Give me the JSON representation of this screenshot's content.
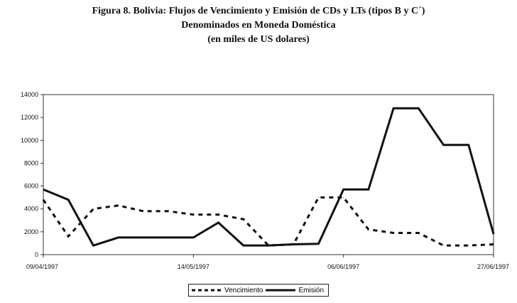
{
  "chart_data": {
    "type": "line",
    "title": "Figura 8. Bolivia: Flujos de Vencimiento y Emisión de CDs y LTs (tipos B y C´)",
    "subtitle": "Denominados en Moneda Doméstica",
    "subtitle2": "(en miles de US dolares)",
    "xlabel": "",
    "ylabel": "",
    "ylim": [
      0,
      14000
    ],
    "yticks": [
      "0",
      "2000",
      "4000",
      "6000",
      "8000",
      "10000",
      "12000",
      "14000"
    ],
    "xtick_labels": [
      {
        "index": 0,
        "label": "09/04/1997"
      },
      {
        "index": 6,
        "label": "14/05/1997"
      },
      {
        "index": 12,
        "label": "06/06/1997"
      },
      {
        "index": 18,
        "label": "27/06/1997"
      }
    ],
    "n_points": 19,
    "legend_position": "bottom",
    "series": [
      {
        "name": "Vencimiento",
        "style": "dashed",
        "values": [
          4800,
          1600,
          4000,
          4300,
          3800,
          3800,
          3500,
          3500,
          3100,
          800,
          900,
          5000,
          5000,
          2200,
          1900,
          1900,
          800,
          800,
          900
        ]
      },
      {
        "name": "Emisión",
        "style": "solid",
        "values": [
          5700,
          4800,
          800,
          1500,
          1500,
          1500,
          1500,
          2800,
          800,
          800,
          900,
          950,
          5700,
          5700,
          12800,
          12800,
          9600,
          9600,
          1800
        ]
      }
    ]
  }
}
